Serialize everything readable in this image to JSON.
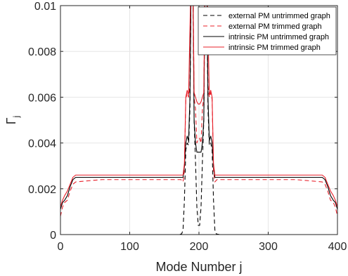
{
  "chart_data": {
    "type": "line",
    "title": "",
    "xlabel": "Mode Number j",
    "ylabel_main": "Γ",
    "ylabel_sub": "j",
    "xlim": [
      0,
      400
    ],
    "ylim": [
      0,
      0.01
    ],
    "xticks": [
      0,
      100,
      200,
      300,
      400
    ],
    "xtick_labels": [
      "0",
      "100",
      "200",
      "300",
      "400"
    ],
    "yticks": [
      0,
      0.002,
      0.004,
      0.006,
      0.008,
      0.01
    ],
    "ytick_labels": [
      "0",
      "0.002",
      "0.004",
      "0.006",
      "0.008",
      "0.01"
    ],
    "grid": true,
    "legend_position": "top-right",
    "series": [
      {
        "name": "external PM untrimmed graph",
        "color": "#000000",
        "dash": "dashed",
        "points": [
          [
            0,
            0
          ],
          [
            170,
            0
          ],
          [
            175,
            3e-05
          ],
          [
            177,
            0.0002
          ],
          [
            179,
            0.0015
          ],
          [
            181,
            0.0037
          ],
          [
            183,
            0.004
          ],
          [
            185,
            0.0039
          ],
          [
            187,
            0.0055
          ],
          [
            189,
            0.012
          ],
          [
            191,
            0.012
          ],
          [
            193,
            0.005
          ],
          [
            195,
            0.0032
          ],
          [
            197,
            0.0012
          ],
          [
            199,
            0.0004
          ],
          [
            201,
            0.0004
          ],
          [
            203,
            0.0012
          ],
          [
            205,
            0.0032
          ],
          [
            207,
            0.005
          ],
          [
            209,
            0.012
          ],
          [
            211,
            0.012
          ],
          [
            213,
            0.0055
          ],
          [
            215,
            0.0039
          ],
          [
            217,
            0.004
          ],
          [
            219,
            0.0037
          ],
          [
            221,
            0.0015
          ],
          [
            223,
            0.0002
          ],
          [
            225,
            3e-05
          ],
          [
            230,
            0
          ],
          [
            400,
            0
          ]
        ]
      },
      {
        "name": "external PM trimmed graph",
        "color": "#e8202a",
        "dash": "dashed",
        "points": [
          [
            0,
            0.0008
          ],
          [
            3,
            0.0012
          ],
          [
            6,
            0.0014
          ],
          [
            10,
            0.0015
          ],
          [
            14,
            0.0019
          ],
          [
            18,
            0.0022
          ],
          [
            22,
            0.0023
          ],
          [
            60,
            0.0024
          ],
          [
            140,
            0.0024
          ],
          [
            174,
            0.0024
          ],
          [
            177,
            0.0023
          ],
          [
            179,
            0.0028
          ],
          [
            181,
            0.0059
          ],
          [
            183,
            0.0062
          ],
          [
            185,
            0.006
          ],
          [
            187,
            0.0065
          ],
          [
            189,
            0.012
          ],
          [
            191,
            0.012
          ],
          [
            193,
            0.006
          ],
          [
            195,
            0.0055
          ],
          [
            197,
            0.004
          ],
          [
            199,
            0.0042
          ],
          [
            201,
            0.0042
          ],
          [
            203,
            0.004
          ],
          [
            205,
            0.0055
          ],
          [
            207,
            0.006
          ],
          [
            209,
            0.012
          ],
          [
            211,
            0.012
          ],
          [
            213,
            0.0065
          ],
          [
            215,
            0.006
          ],
          [
            217,
            0.0062
          ],
          [
            219,
            0.0059
          ],
          [
            221,
            0.0028
          ],
          [
            223,
            0.0023
          ],
          [
            226,
            0.0024
          ],
          [
            260,
            0.0024
          ],
          [
            340,
            0.0024
          ],
          [
            378,
            0.0023
          ],
          [
            382,
            0.0022
          ],
          [
            386,
            0.0019
          ],
          [
            390,
            0.0015
          ],
          [
            394,
            0.0014
          ],
          [
            397,
            0.0012
          ],
          [
            400,
            0.0008
          ]
        ]
      },
      {
        "name": "intrinsic PM untrimmed graph",
        "color": "#000000",
        "dash": "solid",
        "points": [
          [
            0,
            0.0011
          ],
          [
            3,
            0.0014
          ],
          [
            6,
            0.0015
          ],
          [
            10,
            0.0017
          ],
          [
            14,
            0.0021
          ],
          [
            18,
            0.0024
          ],
          [
            22,
            0.0025
          ],
          [
            60,
            0.0025
          ],
          [
            140,
            0.0025
          ],
          [
            174,
            0.0025
          ],
          [
            177,
            0.0025
          ],
          [
            179,
            0.003
          ],
          [
            181,
            0.004
          ],
          [
            183,
            0.0043
          ],
          [
            185,
            0.0041
          ],
          [
            187,
            0.006
          ],
          [
            189,
            0.012
          ],
          [
            191,
            0.012
          ],
          [
            193,
            0.005
          ],
          [
            195,
            0.004
          ],
          [
            197,
            0.0036
          ],
          [
            199,
            0.0036
          ],
          [
            201,
            0.0036
          ],
          [
            203,
            0.0036
          ],
          [
            205,
            0.004
          ],
          [
            207,
            0.005
          ],
          [
            209,
            0.012
          ],
          [
            211,
            0.012
          ],
          [
            213,
            0.006
          ],
          [
            215,
            0.0041
          ],
          [
            217,
            0.0043
          ],
          [
            219,
            0.004
          ],
          [
            221,
            0.003
          ],
          [
            223,
            0.0025
          ],
          [
            226,
            0.0025
          ],
          [
            260,
            0.0025
          ],
          [
            340,
            0.0025
          ],
          [
            378,
            0.0025
          ],
          [
            382,
            0.0024
          ],
          [
            386,
            0.0021
          ],
          [
            390,
            0.0017
          ],
          [
            394,
            0.0015
          ],
          [
            397,
            0.0014
          ],
          [
            400,
            0.0011
          ]
        ]
      },
      {
        "name": "intrinsic PM trimmed graph",
        "color": "#e8202a",
        "dash": "solid",
        "points": [
          [
            0,
            0.0012
          ],
          [
            3,
            0.0015
          ],
          [
            6,
            0.0017
          ],
          [
            10,
            0.0019
          ],
          [
            14,
            0.0022
          ],
          [
            18,
            0.0025
          ],
          [
            22,
            0.0026
          ],
          [
            60,
            0.0026
          ],
          [
            140,
            0.0026
          ],
          [
            174,
            0.0026
          ],
          [
            177,
            0.0026
          ],
          [
            179,
            0.0031
          ],
          [
            181,
            0.006
          ],
          [
            183,
            0.0063
          ],
          [
            185,
            0.0061
          ],
          [
            187,
            0.009
          ],
          [
            189,
            0.012
          ],
          [
            191,
            0.012
          ],
          [
            193,
            0.0062
          ],
          [
            195,
            0.006
          ],
          [
            197,
            0.0058
          ],
          [
            199,
            0.0057
          ],
          [
            201,
            0.0057
          ],
          [
            203,
            0.0058
          ],
          [
            205,
            0.006
          ],
          [
            207,
            0.0062
          ],
          [
            209,
            0.012
          ],
          [
            211,
            0.012
          ],
          [
            213,
            0.009
          ],
          [
            215,
            0.0061
          ],
          [
            217,
            0.0063
          ],
          [
            219,
            0.006
          ],
          [
            221,
            0.0031
          ],
          [
            223,
            0.0026
          ],
          [
            226,
            0.0026
          ],
          [
            260,
            0.0026
          ],
          [
            340,
            0.0026
          ],
          [
            378,
            0.0026
          ],
          [
            382,
            0.0025
          ],
          [
            386,
            0.0022
          ],
          [
            390,
            0.0019
          ],
          [
            394,
            0.0017
          ],
          [
            397,
            0.0015
          ],
          [
            400,
            0.0012
          ]
        ]
      }
    ]
  }
}
